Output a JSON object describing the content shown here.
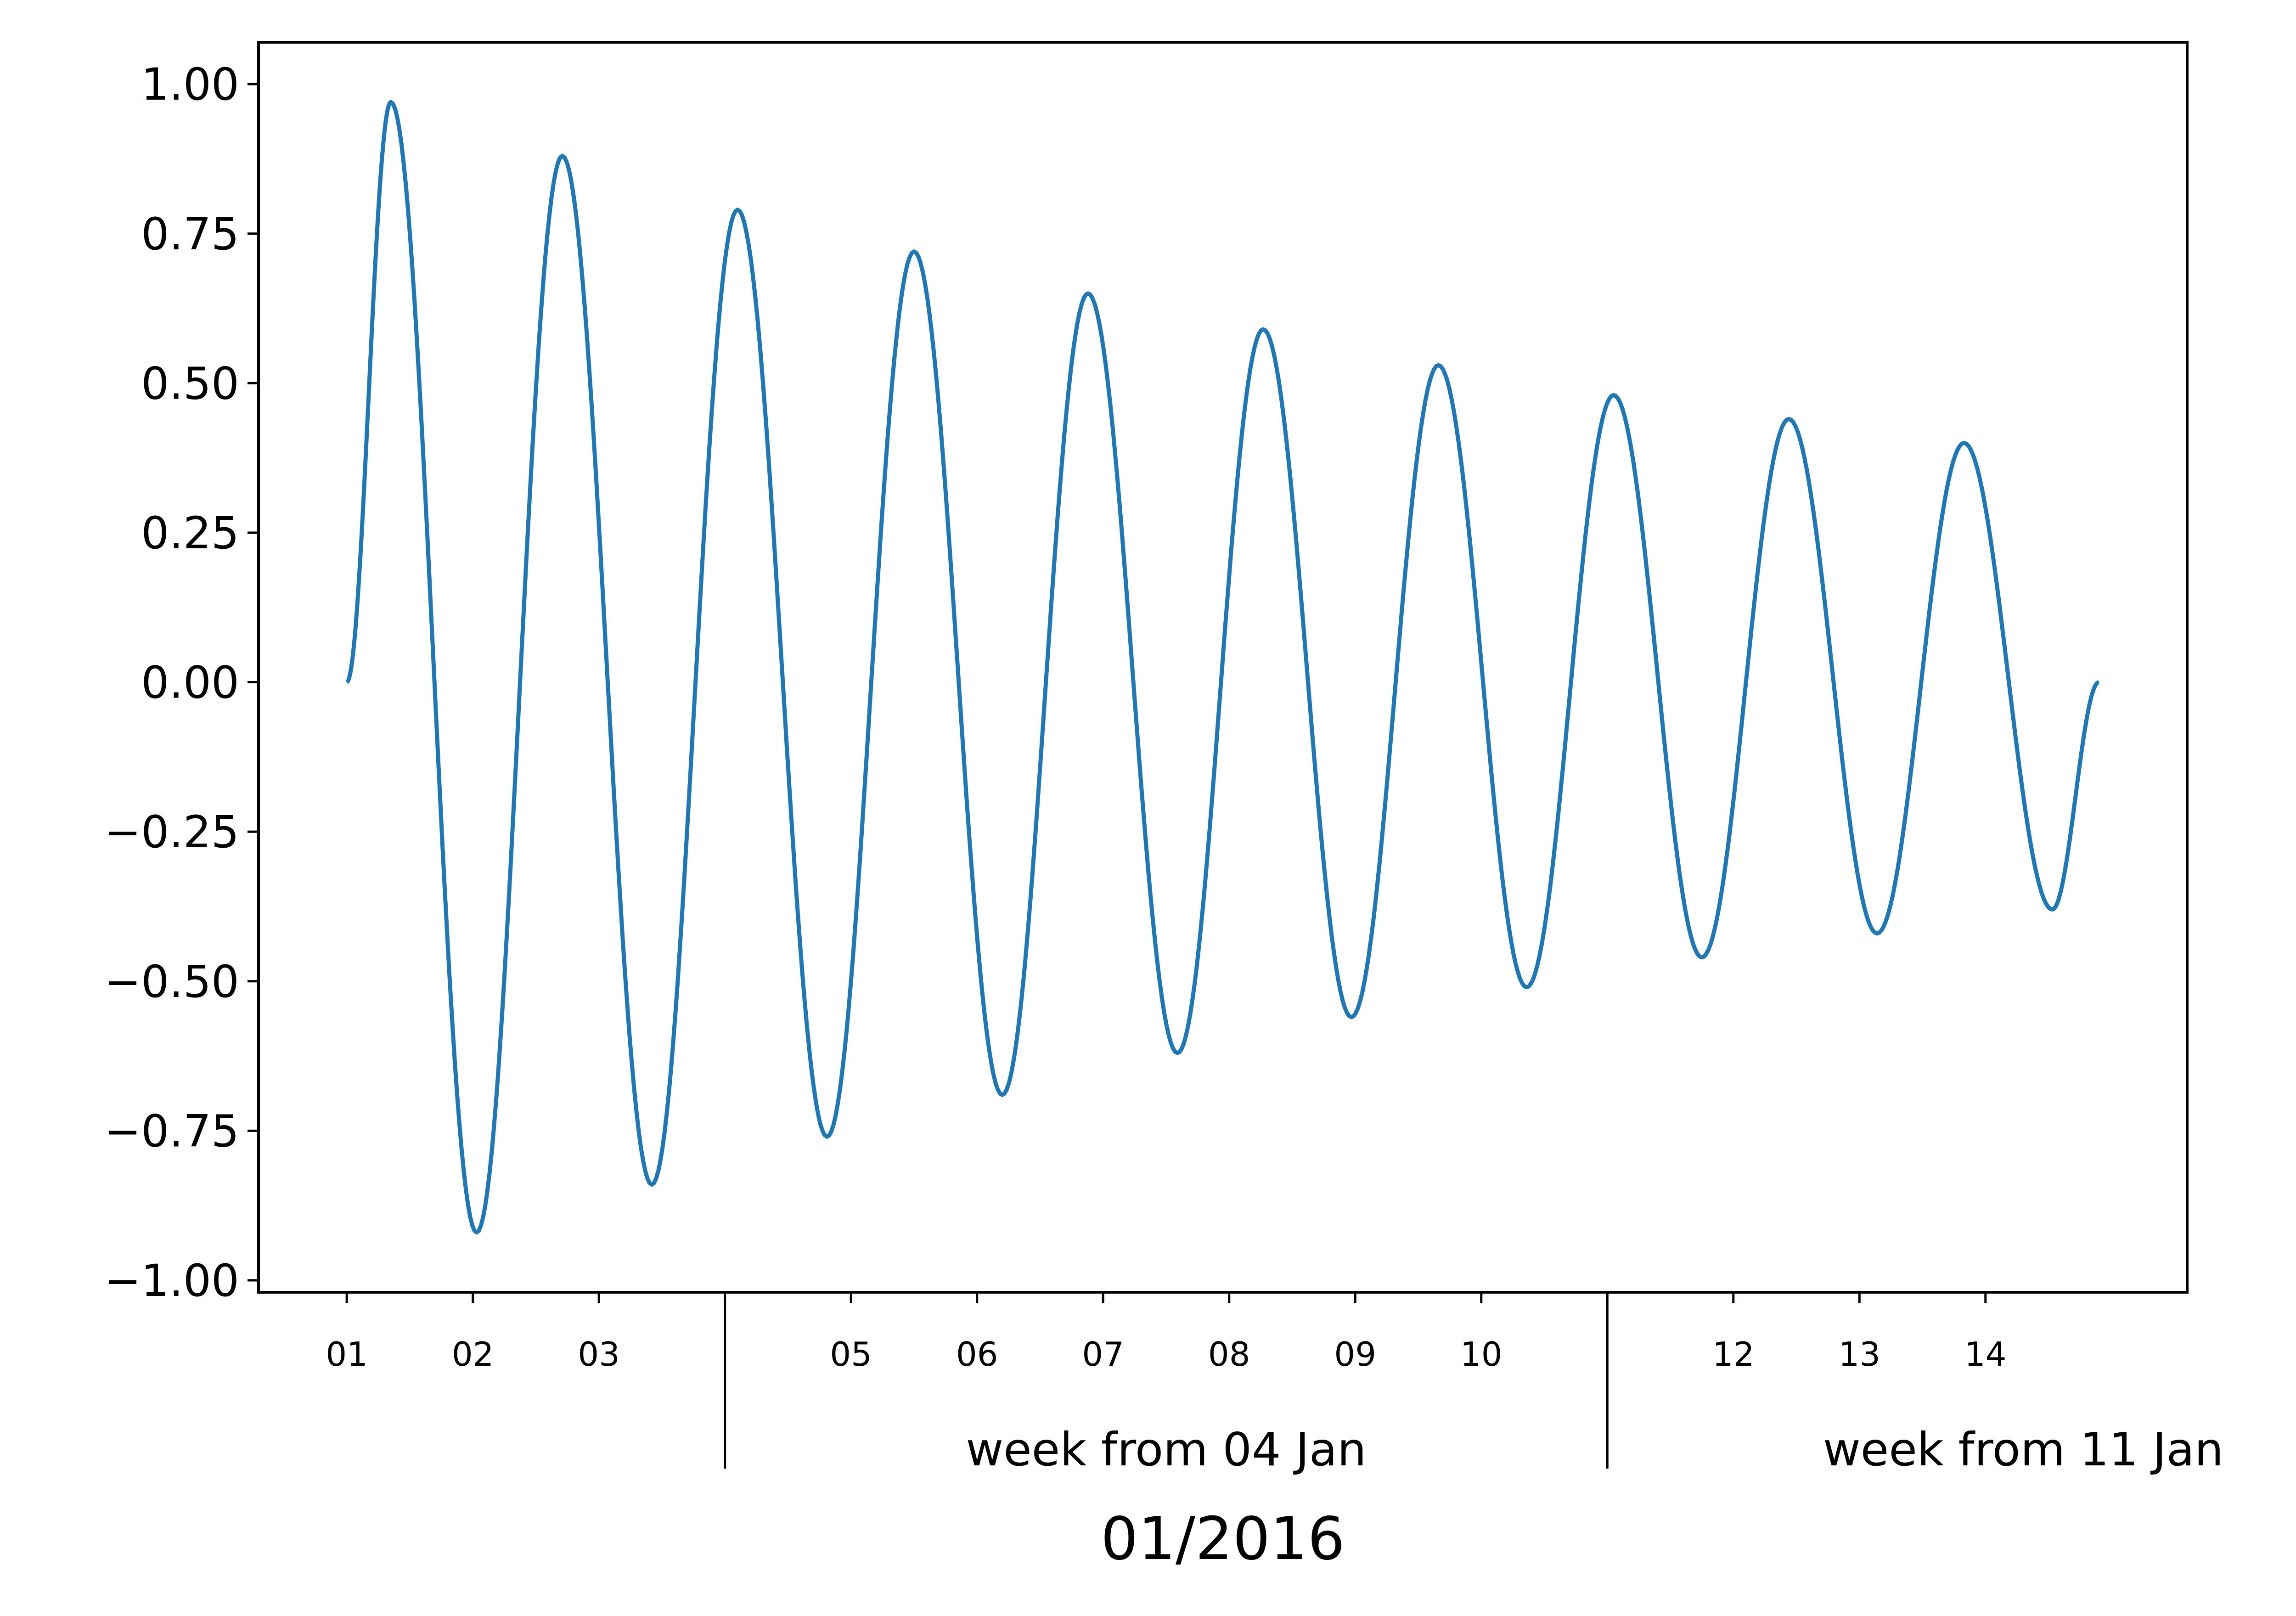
{
  "chart_data": {
    "type": "line",
    "title": "",
    "xlabel": "01/2016",
    "ylabel": "",
    "x_axis": {
      "start_date": "2016-01-01",
      "xlim_days": [
        -0.7,
        14.6
      ],
      "minor_ticks": [
        {
          "day": 0,
          "label": "01"
        },
        {
          "day": 1,
          "label": "02"
        },
        {
          "day": 2,
          "label": "03"
        },
        {
          "day": 4,
          "label": "05"
        },
        {
          "day": 5,
          "label": "06"
        },
        {
          "day": 6,
          "label": "07"
        },
        {
          "day": 7,
          "label": "08"
        },
        {
          "day": 8,
          "label": "09"
        },
        {
          "day": 9,
          "label": "10"
        },
        {
          "day": 11,
          "label": "12"
        },
        {
          "day": 12,
          "label": "13"
        },
        {
          "day": 13,
          "label": "14"
        }
      ],
      "week_markers": [
        {
          "day": 3,
          "label": ""
        },
        {
          "day": 10,
          "label": ""
        }
      ],
      "week_labels": [
        {
          "label": "week from 04 Jan",
          "center_day": 6.5
        },
        {
          "label": "week from 11 Jan",
          "center_day": 13.3
        }
      ]
    },
    "y_axis": {
      "ylim": [
        -1.02,
        1.07
      ],
      "ticks": [
        {
          "value": 1.0,
          "label": "1.00"
        },
        {
          "value": 0.75,
          "label": "0.75"
        },
        {
          "value": 0.5,
          "label": "0.50"
        },
        {
          "value": 0.25,
          "label": "0.25"
        },
        {
          "value": 0.0,
          "label": "0.00"
        },
        {
          "value": -0.25,
          "label": "−0.25"
        },
        {
          "value": -0.5,
          "label": "−0.50"
        },
        {
          "value": -0.75,
          "label": "−0.75"
        },
        {
          "value": -1.0,
          "label": "−1.00"
        }
      ]
    },
    "grid": false,
    "series": [
      {
        "name": "",
        "color": "#1f77b4",
        "points": [
          [
            0.0,
            0.0
          ],
          [
            0.35,
            0.97
          ],
          [
            1.03,
            -0.92
          ],
          [
            1.71,
            0.88
          ],
          [
            2.42,
            -0.84
          ],
          [
            3.1,
            0.79
          ],
          [
            3.81,
            -0.76
          ],
          [
            4.5,
            0.72
          ],
          [
            5.2,
            -0.69
          ],
          [
            5.88,
            0.65
          ],
          [
            6.59,
            -0.62
          ],
          [
            7.27,
            0.59
          ],
          [
            7.97,
            -0.56
          ],
          [
            8.66,
            0.53
          ],
          [
            9.36,
            -0.51
          ],
          [
            10.05,
            0.48
          ],
          [
            10.75,
            -0.46
          ],
          [
            11.44,
            0.44
          ],
          [
            12.14,
            -0.42
          ],
          [
            12.83,
            0.4
          ],
          [
            13.53,
            -0.38
          ],
          [
            13.9,
            0.0
          ]
        ]
      }
    ]
  }
}
